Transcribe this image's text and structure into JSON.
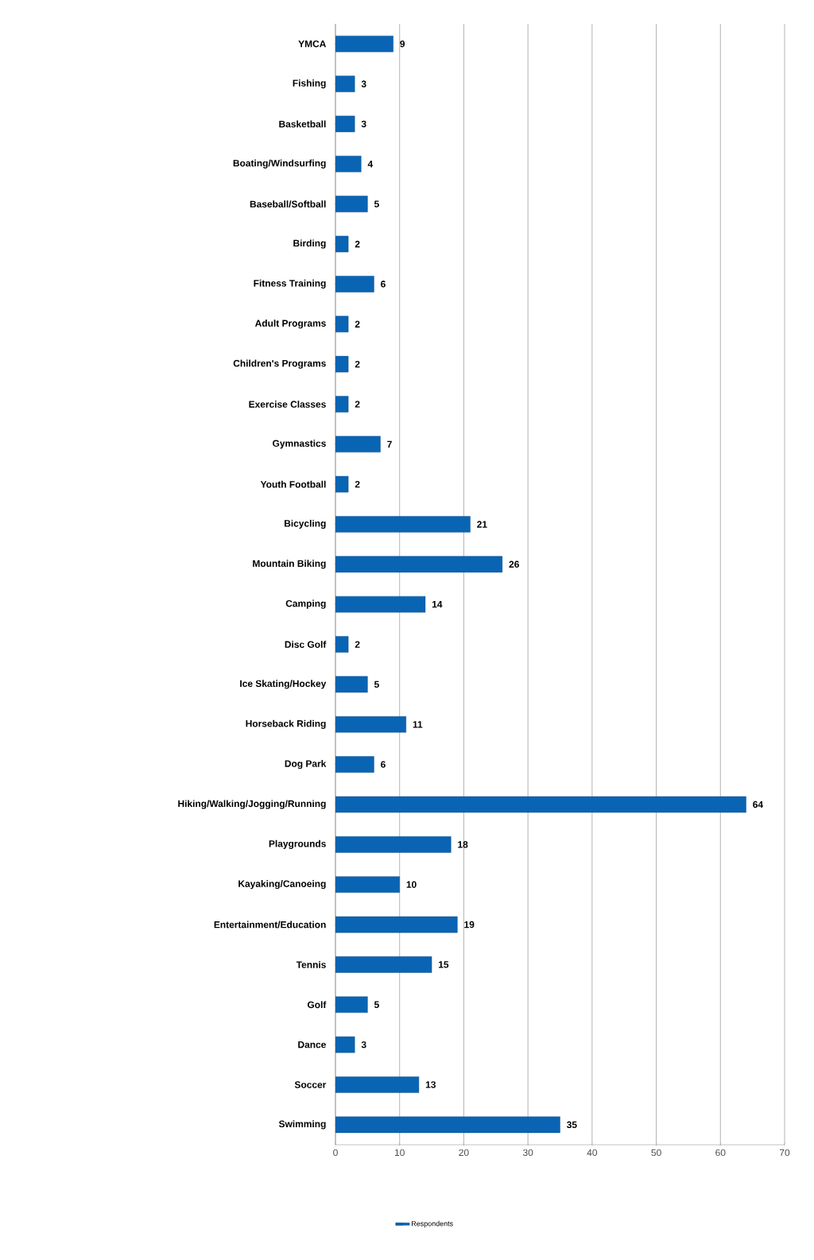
{
  "chart_data": {
    "type": "bar",
    "orientation": "horizontal",
    "categories": [
      "YMCA",
      "Fishing",
      "Basketball",
      "Boating/Windsurfing",
      "Baseball/Softball",
      "Birding",
      "Fitness Training",
      "Adult Programs",
      "Children's Programs",
      "Exercise Classes",
      "Gymnastics",
      "Youth Football",
      "Bicycling",
      "Mountain Biking",
      "Camping",
      "Disc Golf",
      "Ice Skating/Hockey",
      "Horseback Riding",
      "Dog Park",
      "Hiking/Walking/Jogging/Running",
      "Playgrounds",
      "Kayaking/Canoeing",
      "Entertainment/Education",
      "Tennis",
      "Golf",
      "Dance",
      "Soccer",
      "Swimming"
    ],
    "series": [
      {
        "name": "Respondents",
        "color": "#0a64b4",
        "values": [
          9,
          3,
          3,
          4,
          5,
          2,
          6,
          2,
          2,
          2,
          7,
          2,
          21,
          26,
          14,
          2,
          5,
          11,
          6,
          64,
          18,
          10,
          19,
          15,
          5,
          3,
          13,
          35
        ]
      }
    ],
    "xlim": [
      0,
      70
    ],
    "xticks": [
      0,
      10,
      20,
      30,
      40,
      50,
      60,
      70
    ],
    "grid": "x",
    "legend": "bottom",
    "data_labels": true
  }
}
